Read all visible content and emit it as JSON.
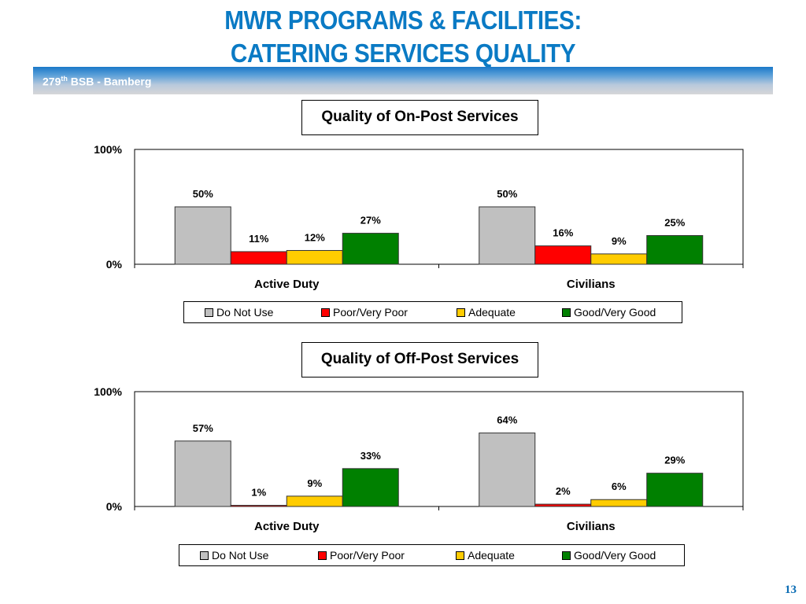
{
  "header": {
    "title_line1": "MWR PROGRAMS & FACILITIES:",
    "title_line2": "CATERING SERVICES QUALITY",
    "band_prefix": "279",
    "band_sup": "th",
    "band_suffix": " BSB - Bamberg"
  },
  "page_number": "13",
  "colors": {
    "do_not_use": "#c0c0c0",
    "poor": "#ff0000",
    "adequate": "#ffcc00",
    "good": "#008000",
    "title_blue": "#0a7ac4"
  },
  "chart_data": [
    {
      "type": "bar",
      "title": "Quality of On-Post Services",
      "categories": [
        "Active Duty",
        "Civilians"
      ],
      "series": [
        {
          "name": "Do Not Use",
          "color": "#c0c0c0",
          "values": [
            50,
            50
          ],
          "labels": [
            "50%",
            "50%"
          ]
        },
        {
          "name": "Poor/Very Poor",
          "color": "#ff0000",
          "values": [
            11,
            16
          ],
          "labels": [
            "11%",
            "16%"
          ]
        },
        {
          "name": "Adequate",
          "color": "#ffcc00",
          "values": [
            12,
            9
          ],
          "labels": [
            "12%",
            "9%"
          ]
        },
        {
          "name": "Good/Very Good",
          "color": "#008000",
          "values": [
            27,
            25
          ],
          "labels": [
            "27%",
            "25%"
          ]
        }
      ],
      "yticks": [
        "0%",
        "100%"
      ],
      "ylim": [
        0,
        100
      ],
      "xlabel": "",
      "ylabel": "",
      "grid": false,
      "legend": "bottom"
    },
    {
      "type": "bar",
      "title": "Quality of Off-Post Services",
      "categories": [
        "Active Duty",
        "Civilians"
      ],
      "series": [
        {
          "name": "Do Not Use",
          "color": "#c0c0c0",
          "values": [
            57,
            64
          ],
          "labels": [
            "57%",
            "64%"
          ]
        },
        {
          "name": "Poor/Very Poor",
          "color": "#ff0000",
          "values": [
            1,
            2
          ],
          "labels": [
            "1%",
            "2%"
          ]
        },
        {
          "name": "Adequate",
          "color": "#ffcc00",
          "values": [
            9,
            6
          ],
          "labels": [
            "9%",
            "6%"
          ]
        },
        {
          "name": "Good/Very Good",
          "color": "#008000",
          "values": [
            33,
            29
          ],
          "labels": [
            "33%",
            "29%"
          ]
        }
      ],
      "yticks": [
        "0%",
        "100%"
      ],
      "ylim": [
        0,
        100
      ],
      "xlabel": "",
      "ylabel": "",
      "grid": false,
      "legend": "bottom"
    }
  ]
}
